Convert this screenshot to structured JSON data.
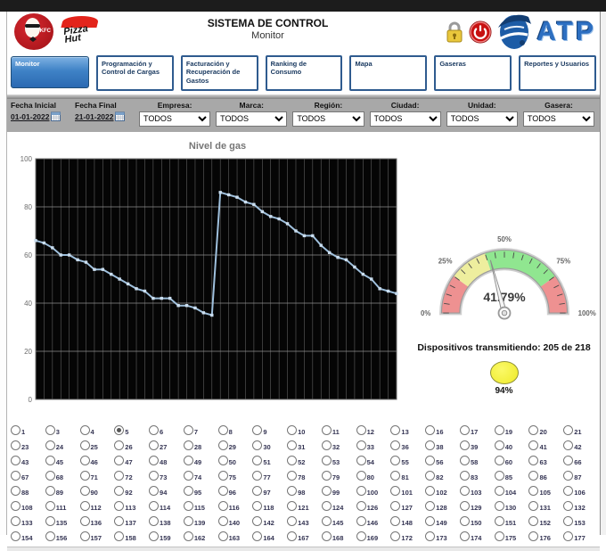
{
  "header": {
    "title": "SISTEMA DE CONTROL",
    "subtitle": "Monitor",
    "logos": {
      "kfc": "KFC",
      "pizza_hut_line1": "Pizza",
      "pizza_hut_line2": "Hut",
      "atp": "ATP"
    }
  },
  "tabs": [
    {
      "label": "Monitor",
      "active": true
    },
    {
      "label": "Programación y Control de Cargas",
      "active": false
    },
    {
      "label": "Facturación y Recuperación de Gastos",
      "active": false
    },
    {
      "label": "Ranking de Consumo",
      "active": false
    },
    {
      "label": "Mapa",
      "active": false
    },
    {
      "label": "Gaseras",
      "active": false
    },
    {
      "label": "Reportes y Usuarios",
      "active": false
    }
  ],
  "filters": {
    "fecha_inicial": {
      "label": "Fecha Inicial",
      "value": "01-01-2022"
    },
    "fecha_final": {
      "label": "Fecha Final",
      "value": "21-01-2022"
    },
    "selects": [
      {
        "label": "Empresa:",
        "value": "TODOS"
      },
      {
        "label": "Marca:",
        "value": "TODOS"
      },
      {
        "label": "Región:",
        "value": "TODOS"
      },
      {
        "label": "Ciudad:",
        "value": "TODOS"
      },
      {
        "label": "Unidad:",
        "value": "TODOS"
      },
      {
        "label": "Gasera:",
        "value": "TODOS"
      }
    ]
  },
  "chart_data": {
    "type": "line",
    "title": "Nivel de gas",
    "xlabel": "",
    "ylabel": "",
    "ylim": [
      0,
      100
    ],
    "yticks": [
      0,
      20,
      40,
      60,
      80,
      100
    ],
    "grid": true,
    "background": "#050505",
    "line_color": "#9fc0dd",
    "marker_color": "#cadef0",
    "values": [
      66,
      65,
      63,
      60,
      60,
      58,
      57,
      54,
      54,
      52,
      50,
      48,
      46,
      45,
      42,
      42,
      42,
      39,
      39,
      38,
      36,
      35,
      86,
      85,
      84,
      82,
      81,
      78,
      76,
      75,
      73,
      70,
      68,
      68,
      64,
      61,
      59,
      58,
      55,
      52,
      50,
      46,
      45,
      44
    ]
  },
  "gauge": {
    "value": 41.79,
    "value_label": "41.79%",
    "tick_labels": [
      "0%",
      "25%",
      "50%",
      "75%",
      "100%"
    ],
    "segments": [
      {
        "from": 0,
        "to": 20,
        "color": "#ee9191"
      },
      {
        "from": 20,
        "to": 40,
        "color": "#eeee9e"
      },
      {
        "from": 40,
        "to": 80,
        "color": "#90e690"
      },
      {
        "from": 80,
        "to": 100,
        "color": "#ee9191"
      }
    ]
  },
  "devices": {
    "label": "Dispositivos transmitiendo: 205 de 218",
    "indicator_percent": "94%",
    "indicator_color": "#f2ee3a"
  },
  "radio_grid": {
    "selected": 5,
    "rows": [
      [
        1,
        3,
        4,
        5,
        6,
        7,
        8,
        9,
        10,
        11,
        12,
        13,
        16,
        17,
        19,
        20,
        21
      ],
      [
        23,
        24,
        25,
        26,
        27,
        28,
        29,
        30,
        31,
        32,
        33,
        36,
        38,
        39,
        40,
        41,
        42
      ],
      [
        43,
        45,
        46,
        47,
        48,
        49,
        50,
        51,
        52,
        53,
        54,
        55,
        56,
        58,
        60,
        63,
        66
      ],
      [
        67,
        68,
        71,
        72,
        73,
        74,
        75,
        77,
        78,
        79,
        80,
        81,
        82,
        83,
        85,
        86,
        87
      ],
      [
        88,
        89,
        90,
        92,
        94,
        95,
        96,
        97,
        98,
        99,
        100,
        101,
        102,
        103,
        104,
        105,
        106
      ],
      [
        108,
        111,
        112,
        113,
        114,
        115,
        116,
        118,
        121,
        124,
        126,
        127,
        128,
        129,
        130,
        131,
        132
      ],
      [
        133,
        135,
        136,
        137,
        138,
        139,
        140,
        142,
        143,
        145,
        146,
        148,
        149,
        150,
        151,
        152,
        153
      ],
      [
        154,
        156,
        157,
        158,
        159,
        162,
        163,
        164,
        167,
        168,
        169,
        172,
        173,
        174,
        175,
        176,
        177
      ]
    ]
  }
}
